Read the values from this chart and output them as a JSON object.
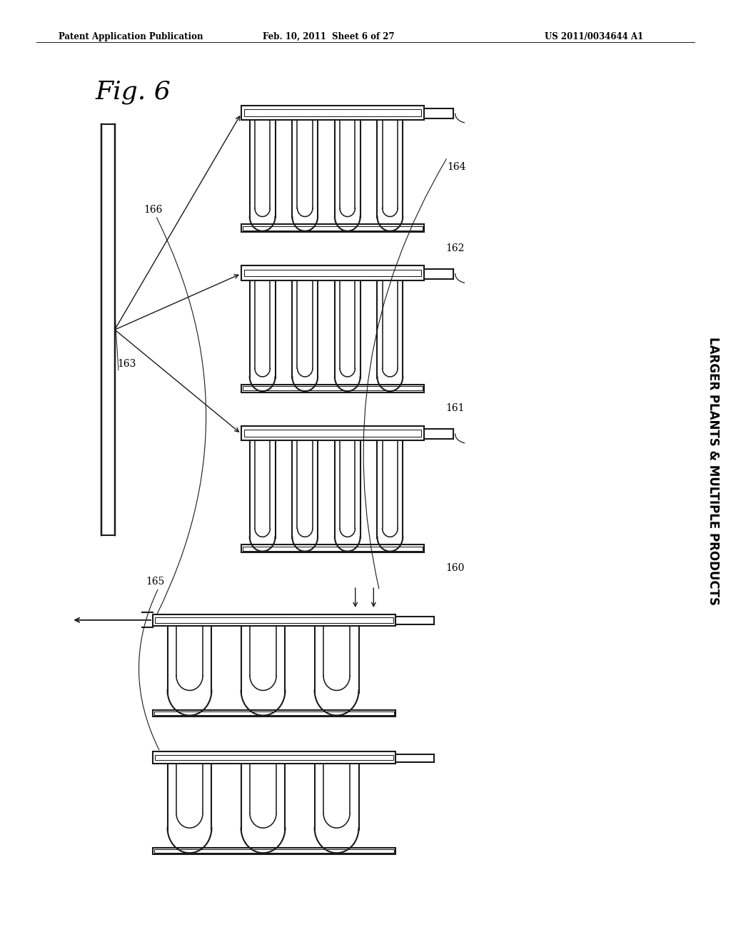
{
  "header_left": "Patent Application Publication",
  "header_mid": "Feb. 10, 2011  Sheet 6 of 27",
  "header_right": "US 2011/0034644 A1",
  "side_text": "LARGER PLANTS & MULTIPLE PRODUCTS",
  "title_fig": "Fig. 6",
  "bg_color": "#ffffff",
  "line_color": "#1a1a1a"
}
